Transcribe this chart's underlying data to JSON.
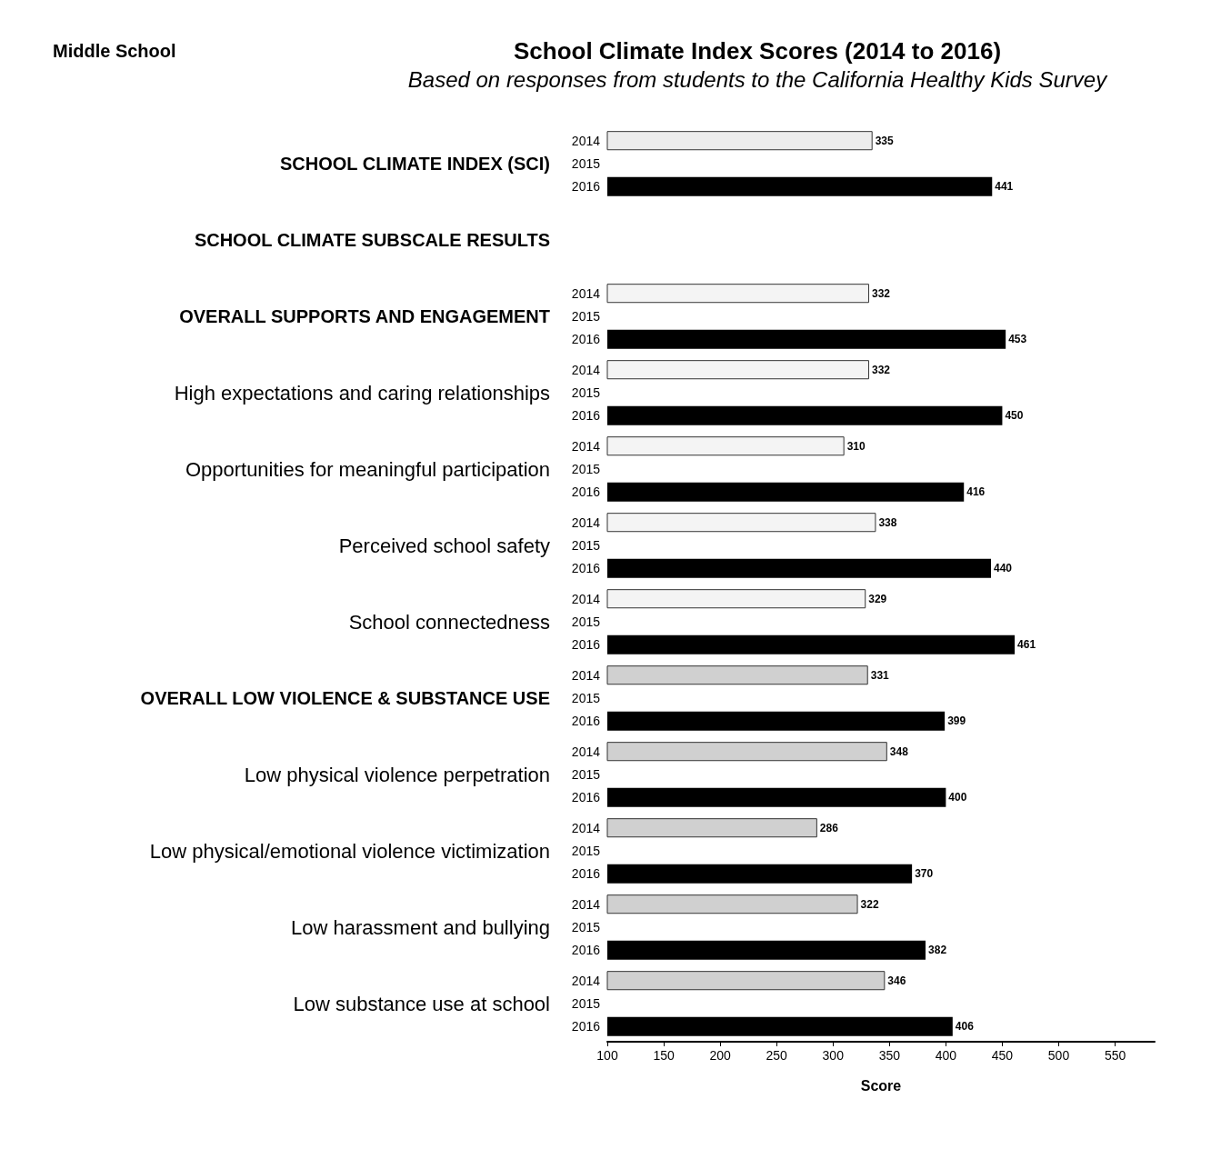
{
  "chart_data": {
    "type": "bar",
    "orientation": "horizontal",
    "title": "School Climate Index Scores (2014 to 2016)",
    "subtitle": "Based on responses from students to the California Healthy Kids Survey",
    "xlabel": "Score",
    "annotations": [
      "Middle School"
    ],
    "categories": [
      "SCHOOL CLIMATE INDEX (SCI)",
      "SCHOOL CLIMATE SUBSCALE RESULTS",
      "OVERALL SUPPORTS AND ENGAGEMENT",
      "High expectations and caring relationships",
      "Opportunities for meaningful participation",
      "Perceived school safety",
      "School connectedness",
      "OVERALL LOW VIOLENCE & SUBSTANCE USE",
      "Low physical violence perpetration",
      "Low physical/emotional violence victimization",
      "Low harassment and bullying",
      "Low substance use at school"
    ],
    "series": [
      {
        "name": "2014",
        "color": "#d0d0d0",
        "colors": [
          "#ececec",
          "#f4f4f4",
          "#f4f4f4",
          "#f4f4f4",
          "#f4f4f4",
          "#f4f4f4",
          "#f4f4f4",
          "#d0d0d0",
          "#d0d0d0",
          "#d0d0d0",
          "#d0d0d0",
          "#d0d0d0"
        ],
        "values": [
          335,
          null,
          332,
          332,
          310,
          338,
          329,
          331,
          348,
          286,
          322,
          346
        ]
      },
      {
        "name": "2015",
        "values": [
          null,
          null,
          null,
          null,
          null,
          null,
          null,
          null,
          null,
          null,
          null,
          null
        ]
      },
      {
        "name": "2016",
        "color": "#000000",
        "values": [
          441,
          null,
          453,
          450,
          416,
          440,
          461,
          399,
          400,
          370,
          382,
          406
        ]
      }
    ],
    "xlim": [
      100,
      585
    ],
    "xticks": [
      100,
      150,
      200,
      250,
      300,
      350,
      400,
      450,
      500,
      550
    ],
    "data_labels": true,
    "grid": false,
    "legend": false
  }
}
